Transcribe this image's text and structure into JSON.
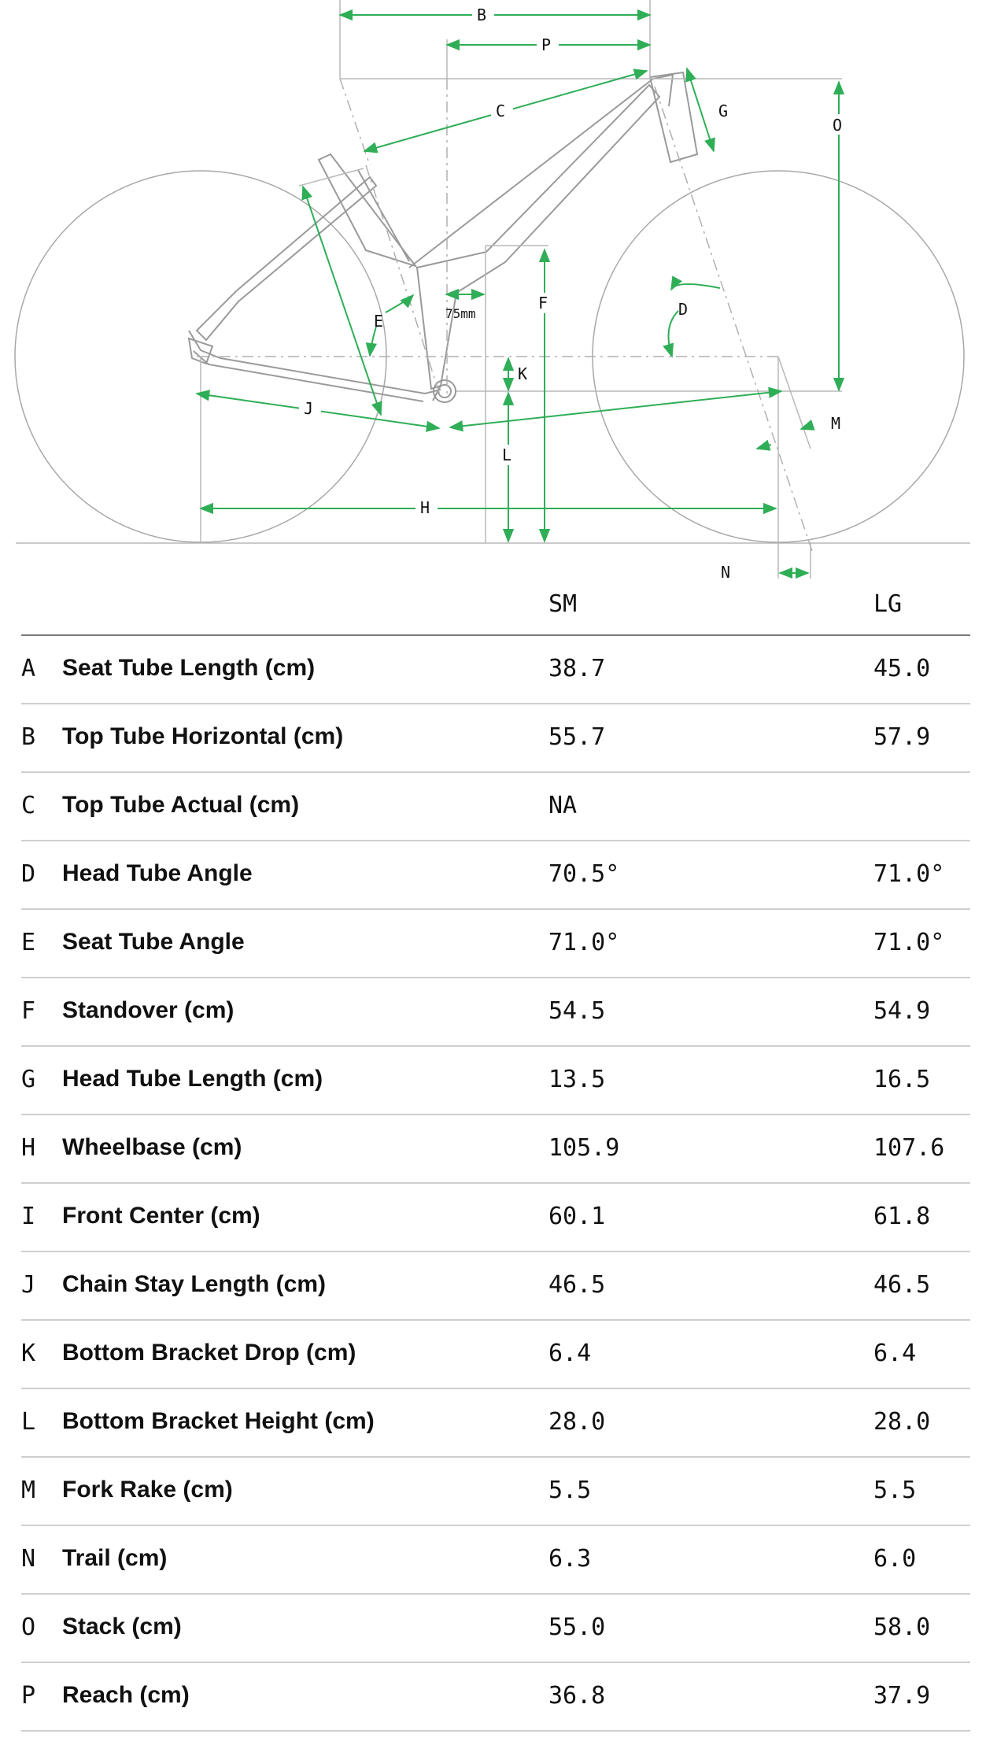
{
  "diagram": {
    "labels": {
      "B": "B",
      "P": "P",
      "C": "C",
      "G": "G",
      "O": "O",
      "E": "E",
      "F": "F",
      "K": "K",
      "D": "D",
      "J": "J",
      "L": "L",
      "H": "H",
      "M": "M",
      "N": "N",
      "offset": "75mm"
    }
  },
  "table": {
    "sizes": [
      "SM",
      "LG"
    ],
    "rows": [
      {
        "letter": "A",
        "name": "Seat Tube Length (cm)",
        "sm": "38.7",
        "lg": "45.0"
      },
      {
        "letter": "B",
        "name": "Top Tube Horizontal (cm)",
        "sm": "55.7",
        "lg": "57.9"
      },
      {
        "letter": "C",
        "name": "Top Tube Actual (cm)",
        "sm": "NA",
        "lg": ""
      },
      {
        "letter": "D",
        "name": "Head Tube Angle",
        "sm": "70.5°",
        "lg": "71.0°"
      },
      {
        "letter": "E",
        "name": "Seat Tube Angle",
        "sm": "71.0°",
        "lg": "71.0°"
      },
      {
        "letter": "F",
        "name": "Standover (cm)",
        "sm": "54.5",
        "lg": "54.9"
      },
      {
        "letter": "G",
        "name": "Head Tube Length (cm)",
        "sm": "13.5",
        "lg": "16.5"
      },
      {
        "letter": "H",
        "name": "Wheelbase (cm)",
        "sm": "105.9",
        "lg": "107.6"
      },
      {
        "letter": "I",
        "name": "Front Center (cm)",
        "sm": "60.1",
        "lg": "61.8"
      },
      {
        "letter": "J",
        "name": "Chain Stay Length (cm)",
        "sm": "46.5",
        "lg": "46.5"
      },
      {
        "letter": "K",
        "name": "Bottom Bracket Drop (cm)",
        "sm": "6.4",
        "lg": "6.4"
      },
      {
        "letter": "L",
        "name": "Bottom Bracket Height (cm)",
        "sm": "28.0",
        "lg": "28.0"
      },
      {
        "letter": "M",
        "name": "Fork Rake (cm)",
        "sm": "5.5",
        "lg": "5.5"
      },
      {
        "letter": "N",
        "name": "Trail (cm)",
        "sm": "6.3",
        "lg": "6.0"
      },
      {
        "letter": "O",
        "name": "Stack (cm)",
        "sm": "55.0",
        "lg": "58.0"
      },
      {
        "letter": "P",
        "name": "Reach (cm)",
        "sm": "36.8",
        "lg": "37.9"
      }
    ]
  },
  "colors": {
    "dimension": "#2fae57",
    "frame": "#9a9a9a",
    "divider": "#cfcfcf",
    "header_rule": "#7a7a7a",
    "text": "#111111"
  }
}
